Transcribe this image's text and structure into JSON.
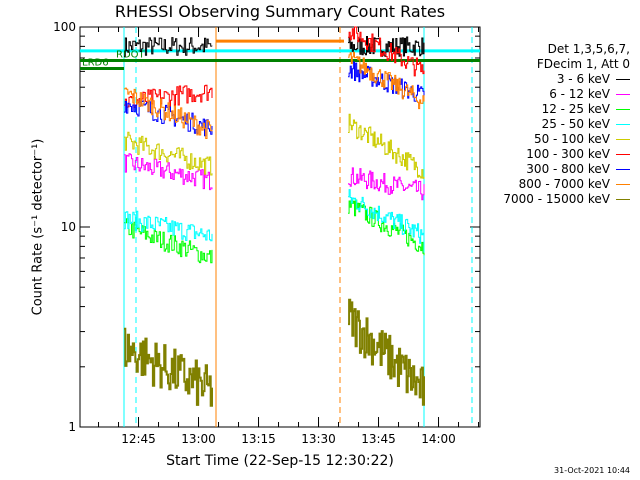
{
  "chart_data": {
    "type": "line",
    "title": "RHESSI Observing Summary Count Rates",
    "xlabel": "Start Time (22-Sep-15 12:30:22)",
    "ylabel": "Count Rate (s⁻¹ detector⁻¹)",
    "yscale": "log",
    "ylim": [
      1,
      100
    ],
    "xlim_minutes": [
      0,
      100
    ],
    "x_ticks": [
      "12:45",
      "13:00",
      "13:15",
      "13:30",
      "13:45",
      "14:00"
    ],
    "y_ticks": [
      "1",
      "10",
      "100"
    ],
    "legend_header": [
      "Det 1,3,5,6,7,",
      "FDecim 1, Att 0"
    ],
    "legend_position": "right",
    "series": [
      {
        "name": "3 - 6 keV",
        "color": "#000000",
        "segments": [
          [
            [
              11,
              80
            ],
            [
              33,
              80
            ]
          ],
          [
            [
              67,
              80
            ],
            [
              86,
              80
            ]
          ]
        ]
      },
      {
        "name": "6 - 12 keV",
        "color": "#ff00ff",
        "segments": [
          [
            [
              11,
              21
            ],
            [
              33,
              17
            ]
          ],
          [
            [
              67,
              18
            ],
            [
              86,
              15
            ]
          ]
        ]
      },
      {
        "name": "12 - 25 keV",
        "color": "#00ff00",
        "segments": [
          [
            [
              11,
              10
            ],
            [
              33,
              7
            ]
          ],
          [
            [
              67,
              13
            ],
            [
              86,
              8
            ]
          ]
        ]
      },
      {
        "name": "25 - 50 keV",
        "color": "#00ffff",
        "segments": [
          [
            [
              11,
              11
            ],
            [
              33,
              9
            ]
          ],
          [
            [
              67,
              14
            ],
            [
              86,
              9
            ]
          ]
        ]
      },
      {
        "name": "50 - 100 keV",
        "color": "#cccc00",
        "segments": [
          [
            [
              11,
              27
            ],
            [
              33,
              20
            ]
          ],
          [
            [
              67,
              33
            ],
            [
              86,
              19
            ]
          ]
        ]
      },
      {
        "name": "100 - 300 keV",
        "color": "#ff0000",
        "segments": [
          [
            [
              11,
              42
            ],
            [
              33,
              48
            ]
          ],
          [
            [
              67,
              97
            ],
            [
              86,
              60
            ]
          ]
        ]
      },
      {
        "name": "300 - 800 keV",
        "color": "#0000ff",
        "segments": [
          [
            [
              11,
              42
            ],
            [
              33,
              31
            ]
          ],
          [
            [
              67,
              62
            ],
            [
              86,
              45
            ]
          ]
        ]
      },
      {
        "name": "800 - 7000 keV",
        "color": "#ff8000",
        "segments": [
          [
            [
              11,
              47
            ],
            [
              33,
              30
            ]
          ],
          [
            [
              67,
              70
            ],
            [
              86,
              42
            ]
          ]
        ]
      },
      {
        "name": "7000 - 15000 keV",
        "color": "#808000",
        "segments": [
          [
            [
              11,
              2.5
            ],
            [
              33,
              1.5
            ]
          ],
          [
            [
              67,
              3.5
            ],
            [
              86,
              1.5
            ]
          ]
        ]
      }
    ],
    "flag_bars": [
      {
        "name": "SAA",
        "label": "",
        "color": "#00ffff",
        "y": 76,
        "x_start": 0,
        "x_end": 100
      },
      {
        "name": "RDO",
        "label": "RDOT",
        "color": "#008000",
        "y": 68,
        "x_start": 0,
        "x_end": 100
      },
      {
        "name": "ATT",
        "label": "",
        "color": "#ff8000",
        "y": 85,
        "x_start": 34,
        "x_end": 66
      },
      {
        "name": "LRD6",
        "label": "LRD6",
        "color": "#008000",
        "y": 62,
        "x_start": 0,
        "x_end": 11
      }
    ],
    "vertical_markers": [
      {
        "color": "#00ffff",
        "style": "solid",
        "x": 11
      },
      {
        "color": "#00ffff",
        "style": "dashed",
        "x": 14
      },
      {
        "color": "#ff8000",
        "style": "solid",
        "x": 34
      },
      {
        "color": "#ff8000",
        "style": "dashed",
        "x": 65
      },
      {
        "color": "#00ffff",
        "style": "solid",
        "x": 86
      },
      {
        "color": "#00ffff",
        "style": "dashed",
        "x": 98
      }
    ],
    "timestamp": "31-Oct-2021 10:44"
  }
}
